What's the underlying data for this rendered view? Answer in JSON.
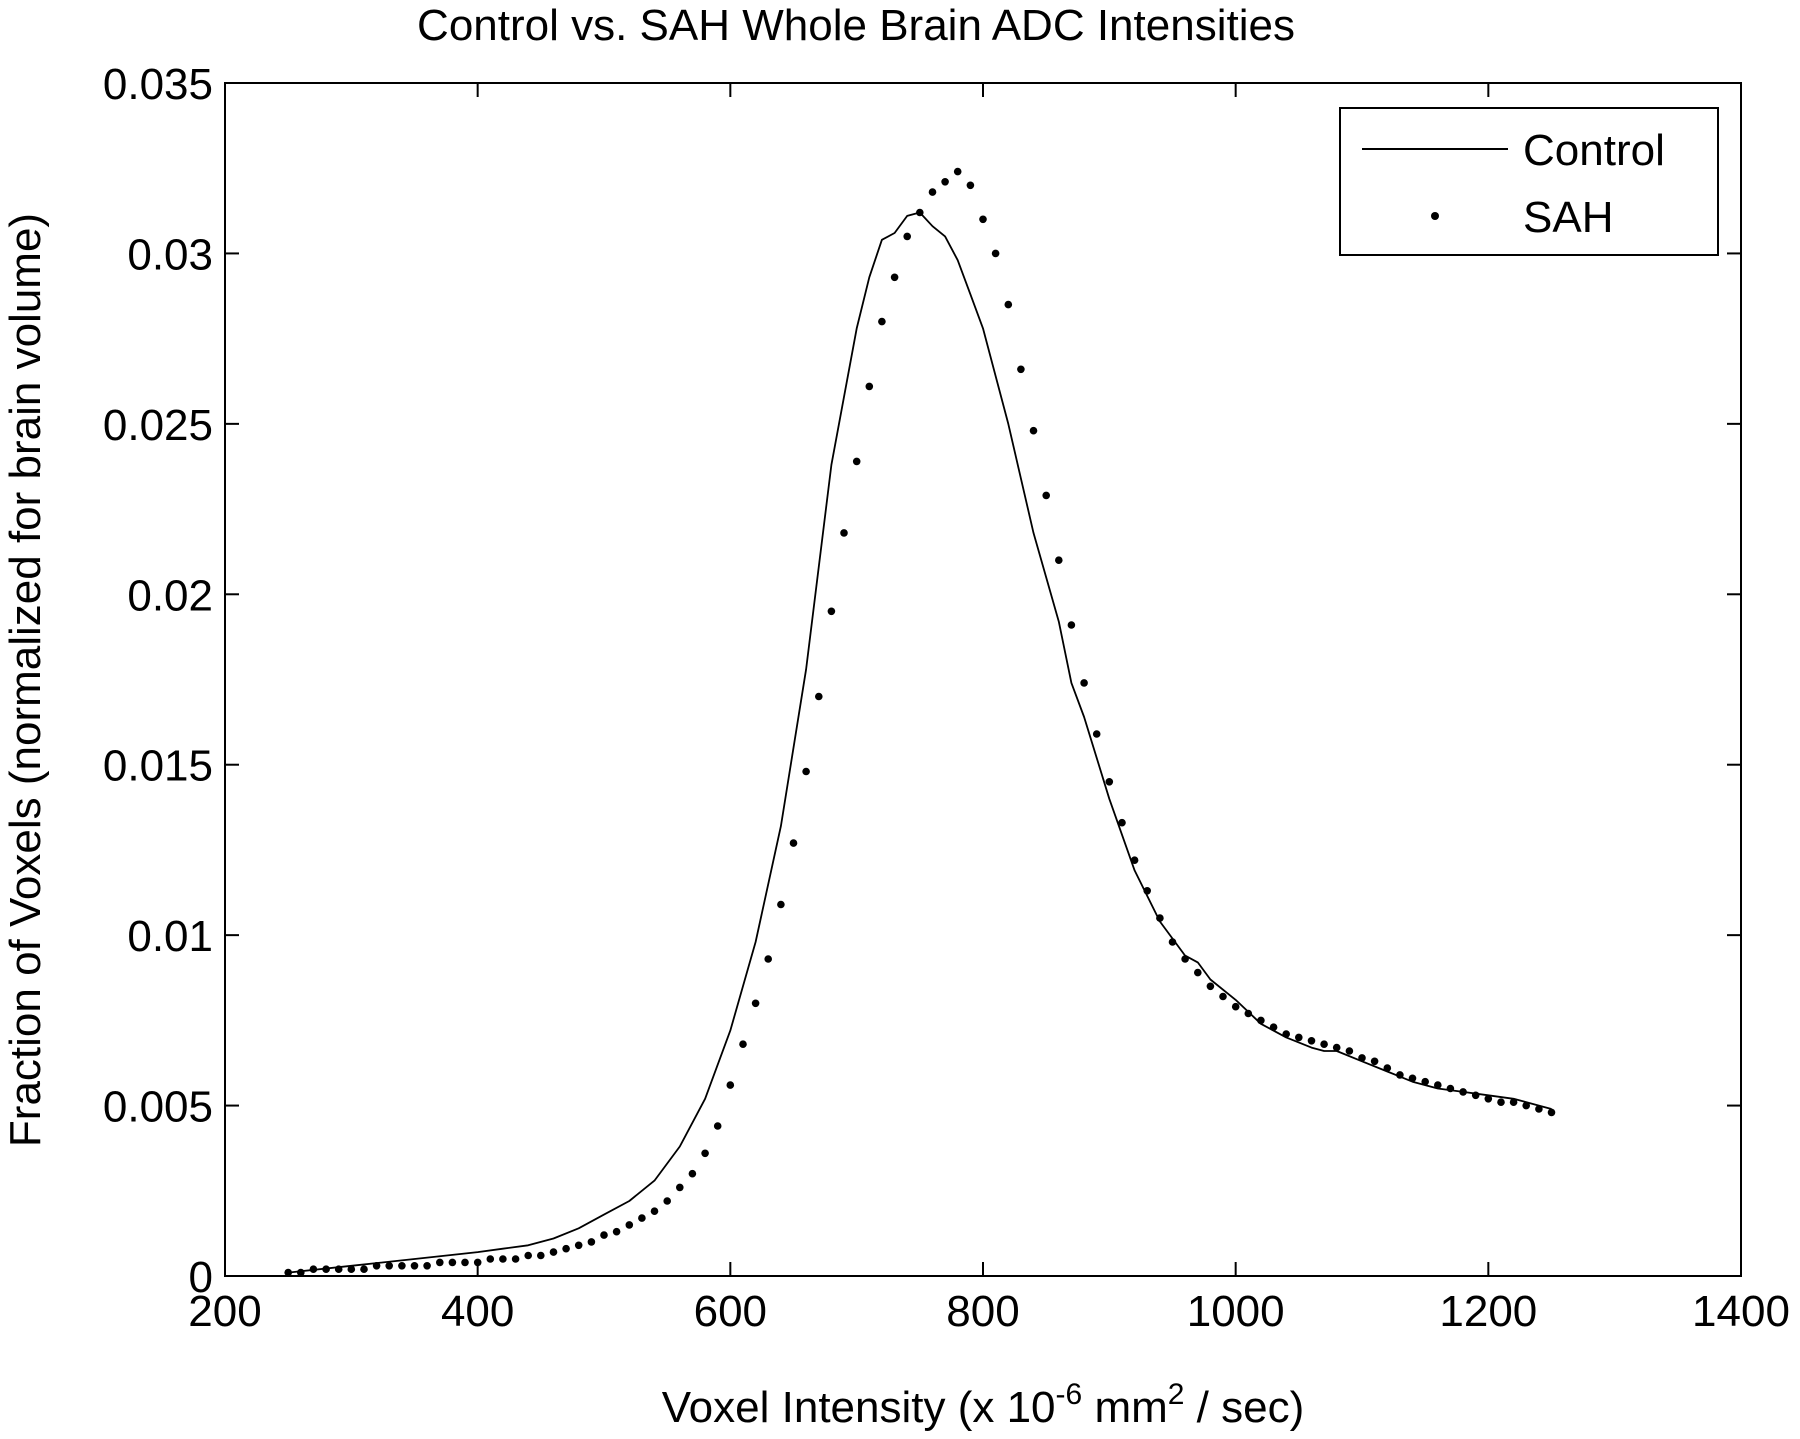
{
  "chart_data": {
    "type": "line",
    "title": "Control vs. SAH Whole Brain ADC Intensities",
    "xlabel": {
      "pre": "Voxel Intensity (x 10",
      "sup1": "-6",
      "mid": " mm",
      "sup2": "2",
      "post": " / sec)"
    },
    "ylabel": "Fraction of Voxels (normalized for brain volume)",
    "xlim": [
      200,
      1400
    ],
    "ylim": [
      0,
      0.035
    ],
    "xticks": [
      "200",
      "400",
      "600",
      "800",
      "1000",
      "1200",
      "1400"
    ],
    "yticks": [
      "0",
      "0.005",
      "0.01",
      "0.015",
      "0.02",
      "0.025",
      "0.03",
      "0.035"
    ],
    "grid": false,
    "legend_position": "top-right",
    "series": [
      {
        "name": "Control",
        "style": "solid-line",
        "color": "#000000",
        "points": [
          [
            250,
            0.0001
          ],
          [
            300,
            0.0003
          ],
          [
            350,
            0.0005
          ],
          [
            400,
            0.0007
          ],
          [
            420,
            0.0008
          ],
          [
            440,
            0.0009
          ],
          [
            460,
            0.0011
          ],
          [
            480,
            0.0014
          ],
          [
            500,
            0.0018
          ],
          [
            520,
            0.0022
          ],
          [
            540,
            0.0028
          ],
          [
            560,
            0.0038
          ],
          [
            580,
            0.0052
          ],
          [
            600,
            0.0072
          ],
          [
            620,
            0.0098
          ],
          [
            640,
            0.0132
          ],
          [
            660,
            0.0178
          ],
          [
            680,
            0.0238
          ],
          [
            700,
            0.0278
          ],
          [
            710,
            0.0293
          ],
          [
            720,
            0.0304
          ],
          [
            730,
            0.0306
          ],
          [
            740,
            0.0311
          ],
          [
            750,
            0.0312
          ],
          [
            760,
            0.0308
          ],
          [
            770,
            0.0305
          ],
          [
            780,
            0.0298
          ],
          [
            790,
            0.0288
          ],
          [
            800,
            0.0278
          ],
          [
            820,
            0.025
          ],
          [
            840,
            0.0218
          ],
          [
            860,
            0.0192
          ],
          [
            870,
            0.0174
          ],
          [
            880,
            0.0164
          ],
          [
            900,
            0.014
          ],
          [
            920,
            0.0119
          ],
          [
            940,
            0.0104
          ],
          [
            960,
            0.0094
          ],
          [
            970,
            0.0092
          ],
          [
            980,
            0.0087
          ],
          [
            1000,
            0.0081
          ],
          [
            1020,
            0.0074
          ],
          [
            1040,
            0.007
          ],
          [
            1060,
            0.0067
          ],
          [
            1070,
            0.0066
          ],
          [
            1080,
            0.0066
          ],
          [
            1100,
            0.0063
          ],
          [
            1120,
            0.006
          ],
          [
            1140,
            0.0057
          ],
          [
            1160,
            0.0055
          ],
          [
            1180,
            0.0054
          ],
          [
            1200,
            0.0053
          ],
          [
            1220,
            0.0052
          ],
          [
            1240,
            0.005
          ],
          [
            1250,
            0.0049
          ]
        ]
      },
      {
        "name": "SAH",
        "style": "dots",
        "color": "#000000",
        "points": [
          [
            250,
            0.0001
          ],
          [
            260,
            0.0001
          ],
          [
            270,
            0.0002
          ],
          [
            280,
            0.0002
          ],
          [
            290,
            0.0002
          ],
          [
            300,
            0.0002
          ],
          [
            310,
            0.0002
          ],
          [
            320,
            0.0003
          ],
          [
            330,
            0.0003
          ],
          [
            340,
            0.0003
          ],
          [
            350,
            0.0003
          ],
          [
            360,
            0.0003
          ],
          [
            370,
            0.0004
          ],
          [
            380,
            0.0004
          ],
          [
            390,
            0.0004
          ],
          [
            400,
            0.0004
          ],
          [
            410,
            0.0005
          ],
          [
            420,
            0.0005
          ],
          [
            430,
            0.0005
          ],
          [
            440,
            0.0006
          ],
          [
            450,
            0.0006
          ],
          [
            460,
            0.0007
          ],
          [
            470,
            0.0008
          ],
          [
            480,
            0.0009
          ],
          [
            490,
            0.001
          ],
          [
            500,
            0.0012
          ],
          [
            510,
            0.0013
          ],
          [
            520,
            0.0015
          ],
          [
            530,
            0.0017
          ],
          [
            540,
            0.0019
          ],
          [
            550,
            0.0022
          ],
          [
            560,
            0.0026
          ],
          [
            570,
            0.003
          ],
          [
            580,
            0.0036
          ],
          [
            590,
            0.0044
          ],
          [
            600,
            0.0056
          ],
          [
            610,
            0.0068
          ],
          [
            620,
            0.008
          ],
          [
            630,
            0.0093
          ],
          [
            640,
            0.0109
          ],
          [
            650,
            0.0127
          ],
          [
            660,
            0.0148
          ],
          [
            670,
            0.017
          ],
          [
            680,
            0.0195
          ],
          [
            690,
            0.0218
          ],
          [
            700,
            0.0239
          ],
          [
            710,
            0.0261
          ],
          [
            720,
            0.028
          ],
          [
            730,
            0.0293
          ],
          [
            740,
            0.0305
          ],
          [
            750,
            0.0312
          ],
          [
            760,
            0.0318
          ],
          [
            770,
            0.0321
          ],
          [
            780,
            0.0324
          ],
          [
            790,
            0.032
          ],
          [
            800,
            0.031
          ],
          [
            810,
            0.03
          ],
          [
            820,
            0.0285
          ],
          [
            830,
            0.0266
          ],
          [
            840,
            0.0248
          ],
          [
            850,
            0.0229
          ],
          [
            860,
            0.021
          ],
          [
            870,
            0.0191
          ],
          [
            880,
            0.0174
          ],
          [
            890,
            0.0159
          ],
          [
            900,
            0.0145
          ],
          [
            910,
            0.0133
          ],
          [
            920,
            0.0122
          ],
          [
            930,
            0.0113
          ],
          [
            940,
            0.0105
          ],
          [
            950,
            0.0098
          ],
          [
            960,
            0.0093
          ],
          [
            970,
            0.0089
          ],
          [
            980,
            0.0085
          ],
          [
            990,
            0.0082
          ],
          [
            1000,
            0.0079
          ],
          [
            1010,
            0.0077
          ],
          [
            1020,
            0.0075
          ],
          [
            1030,
            0.0073
          ],
          [
            1040,
            0.0071
          ],
          [
            1050,
            0.007
          ],
          [
            1060,
            0.0069
          ],
          [
            1070,
            0.0068
          ],
          [
            1080,
            0.0067
          ],
          [
            1090,
            0.0066
          ],
          [
            1100,
            0.0064
          ],
          [
            1110,
            0.0063
          ],
          [
            1120,
            0.0061
          ],
          [
            1130,
            0.0059
          ],
          [
            1140,
            0.0058
          ],
          [
            1150,
            0.0057
          ],
          [
            1160,
            0.0056
          ],
          [
            1170,
            0.0055
          ],
          [
            1180,
            0.0054
          ],
          [
            1190,
            0.0053
          ],
          [
            1200,
            0.0052
          ],
          [
            1210,
            0.0051
          ],
          [
            1220,
            0.0051
          ],
          [
            1230,
            0.005
          ],
          [
            1240,
            0.0049
          ],
          [
            1250,
            0.0048
          ]
        ]
      }
    ]
  }
}
